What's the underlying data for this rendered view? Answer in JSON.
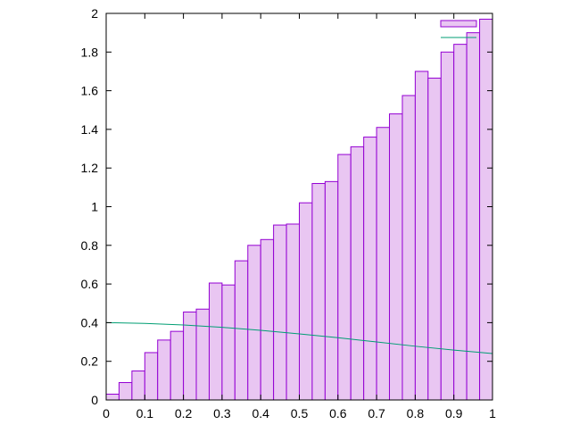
{
  "chart_data": {
    "type": "bar",
    "title": "",
    "xlabel": "",
    "ylabel": "",
    "xlim": [
      0,
      1
    ],
    "ylim": [
      0,
      2
    ],
    "grid": false,
    "legend_position": "top-right",
    "x_ticks": [
      "0",
      "0.1",
      "0.2",
      "0.3",
      "0.4",
      "0.5",
      "0.6",
      "0.7",
      "0.8",
      "0.9",
      "1"
    ],
    "y_ticks": [
      "0",
      "0.2",
      "0.4",
      "0.6",
      "0.8",
      "1",
      "1.2",
      "1.4",
      "1.6",
      "1.8",
      "2"
    ],
    "histogram": {
      "name": "",
      "bin_edges": [
        0,
        0.0333,
        0.0667,
        0.1,
        0.1333,
        0.1667,
        0.2,
        0.2333,
        0.2667,
        0.3,
        0.3333,
        0.3667,
        0.4,
        0.4333,
        0.4667,
        0.5,
        0.5333,
        0.5667,
        0.6,
        0.6333,
        0.6667,
        0.7,
        0.7333,
        0.7667,
        0.8,
        0.8333,
        0.8667,
        0.9,
        0.9333,
        0.9667,
        1
      ],
      "values": [
        0.03,
        0.09,
        0.15,
        0.245,
        0.31,
        0.355,
        0.455,
        0.47,
        0.605,
        0.595,
        0.72,
        0.8,
        0.83,
        0.905,
        0.91,
        1.02,
        1.12,
        1.13,
        1.27,
        1.31,
        1.36,
        1.41,
        1.48,
        1.575,
        1.7,
        1.665,
        1.8,
        1.84,
        1.9,
        1.97
      ],
      "fill": "#e9c6f2",
      "stroke": "#9400d3"
    },
    "line": {
      "name": "",
      "x": [
        0,
        0.1,
        0.2,
        0.3,
        0.4,
        0.5,
        0.6,
        0.7,
        0.8,
        0.9,
        1
      ],
      "y": [
        0.4,
        0.396,
        0.388,
        0.376,
        0.36,
        0.342,
        0.322,
        0.3,
        0.278,
        0.258,
        0.24
      ],
      "color": "#009e73"
    }
  }
}
